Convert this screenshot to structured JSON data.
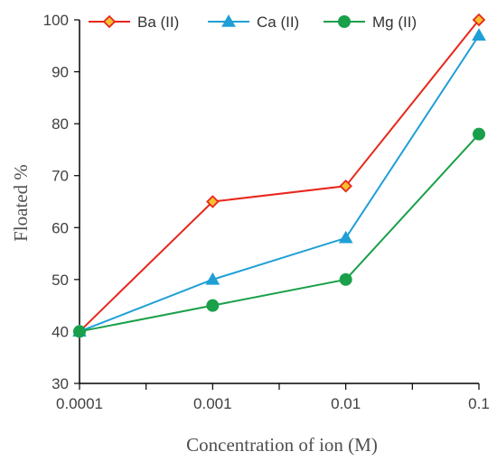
{
  "chart_data": {
    "type": "line",
    "xlabel": "Concentration of ion (M)",
    "ylabel": "Floated %",
    "x": [
      0.0001,
      0.001,
      0.01,
      0.1
    ],
    "x_tick_labels": [
      "0.0001",
      "0.001",
      "0.01",
      "0.1"
    ],
    "x_scale": "log",
    "ylim": [
      30,
      100
    ],
    "y_ticks": [
      30,
      40,
      50,
      60,
      70,
      80,
      90,
      100
    ],
    "grid": false,
    "legend_position": "top",
    "series": [
      {
        "name": "Ba (II)",
        "values": [
          40,
          65,
          68,
          100
        ],
        "color": "#e8271c",
        "marker": "diamond",
        "marker_fill": "#f6c02e"
      },
      {
        "name": "Ca (II)",
        "values": [
          40,
          50,
          58,
          97
        ],
        "color": "#1f9fd6",
        "marker": "triangle",
        "marker_fill": "#1f9fd6"
      },
      {
        "name": "Mg (II)",
        "values": [
          40,
          45,
          50,
          78
        ],
        "color": "#1aa04a",
        "marker": "circle",
        "marker_fill": "#1aa04a"
      }
    ]
  }
}
